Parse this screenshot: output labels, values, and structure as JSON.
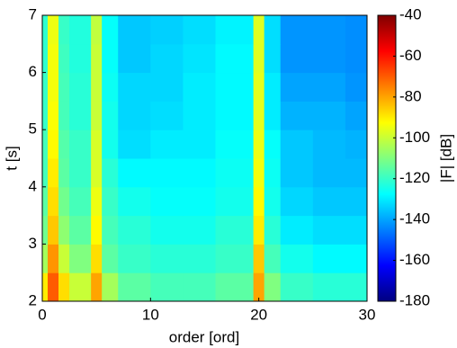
{
  "chart_data": {
    "type": "heatmap",
    "xlabel": "order [ord]",
    "ylabel": "t [s]",
    "colorbar_label": "|F| [dB]",
    "xbins": [
      0,
      0.5,
      1.5,
      2.5,
      4.5,
      5.5,
      7,
      10,
      13,
      16,
      19.5,
      20.5,
      22,
      25,
      28,
      30
    ],
    "ybins": [
      2,
      2.5,
      3,
      3.5,
      4,
      4.5,
      5,
      5.5,
      6,
      6.5,
      7
    ],
    "z": [
      [
        -90,
        -70,
        -88,
        -100,
        -80,
        -105,
        -115,
        -118,
        -118,
        -115,
        -80,
        -110,
        -120,
        -122,
        -122
      ],
      [
        -105,
        -78,
        -100,
        -110,
        -88,
        -115,
        -120,
        -122,
        -122,
        -120,
        -85,
        -118,
        -125,
        -128,
        -128
      ],
      [
        -112,
        -85,
        -108,
        -115,
        -92,
        -118,
        -122,
        -125,
        -125,
        -122,
        -90,
        -122,
        -130,
        -132,
        -132
      ],
      [
        -115,
        -88,
        -112,
        -118,
        -95,
        -120,
        -125,
        -127,
        -127,
        -125,
        -92,
        -125,
        -133,
        -135,
        -135
      ],
      [
        -118,
        -90,
        -115,
        -120,
        -98,
        -122,
        -128,
        -128,
        -128,
        -126,
        -94,
        -126,
        -135,
        -137,
        -137
      ],
      [
        -118,
        -92,
        -116,
        -120,
        -98,
        -125,
        -132,
        -130,
        -130,
        -127,
        -95,
        -127,
        -135,
        -137,
        -138
      ],
      [
        -120,
        -93,
        -118,
        -122,
        -100,
        -125,
        -133,
        -132,
        -130,
        -128,
        -96,
        -130,
        -138,
        -138,
        -140
      ],
      [
        -120,
        -94,
        -118,
        -122,
        -100,
        -126,
        -133,
        -133,
        -130,
        -128,
        -96,
        -130,
        -140,
        -140,
        -142
      ],
      [
        -121,
        -94,
        -119,
        -123,
        -100,
        -127,
        -135,
        -133,
        -131,
        -128,
        -97,
        -132,
        -142,
        -142,
        -143
      ],
      [
        -121,
        -95,
        -120,
        -123,
        -101,
        -127,
        -135,
        -134,
        -132,
        -129,
        -97,
        -132,
        -142,
        -142,
        -143
      ]
    ],
    "xlim": [
      0,
      30
    ],
    "xticks": [
      0,
      10,
      20,
      30
    ],
    "ylim": [
      2,
      7
    ],
    "yticks": [
      2,
      3,
      4,
      5,
      6,
      7
    ],
    "clim": [
      -180,
      -40
    ],
    "cticks": [
      -40,
      -60,
      -80,
      -100,
      -120,
      -140,
      -160,
      -180
    ],
    "colormap": "jet"
  }
}
